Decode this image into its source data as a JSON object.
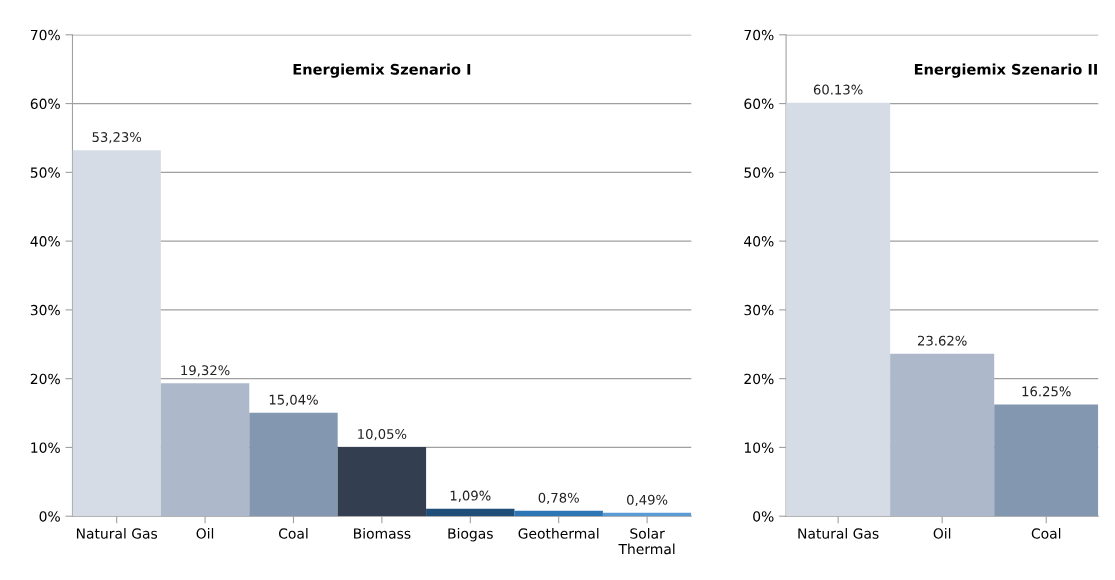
{
  "chart_data": [
    {
      "type": "bar",
      "title": "Energiemix Szenario I",
      "categories": [
        "Natural Gas",
        "Oil",
        "Coal",
        "Biomass",
        "Biogas",
        "Geothermal",
        "Solar\nThermal"
      ],
      "values": [
        53.23,
        19.32,
        15.04,
        10.05,
        1.09,
        0.78,
        0.49
      ],
      "colors": [
        "#d6dce5",
        "#adb9ca",
        "#8497b0",
        "#333f50",
        "#1f4e79",
        "#2e75b6",
        "#5b9bd5"
      ],
      "value_labels": [
        "53,23%",
        "19,32%",
        "15,04%",
        "10,05%",
        "1,09%",
        "0,78%",
        "0,49%"
      ],
      "ylim": [
        0,
        70
      ],
      "yticks": [
        {
          "value": 0,
          "label": "0%"
        },
        {
          "value": 10,
          "label": "10%"
        },
        {
          "value": 20,
          "label": "20%"
        },
        {
          "value": 30,
          "label": "30%"
        },
        {
          "value": 40,
          "label": "40%"
        },
        {
          "value": 50,
          "label": "50%"
        },
        {
          "value": 60,
          "label": "60%"
        },
        {
          "value": 70,
          "label": "70%"
        }
      ],
      "grid": "y",
      "legend": false
    },
    {
      "type": "bar",
      "title": "Energiemix Szenario II",
      "categories": [
        "Natural Gas",
        "Oil",
        "Coal"
      ],
      "values": [
        60.13,
        23.62,
        16.25
      ],
      "colors": [
        "#d6dce5",
        "#adb9ca",
        "#8497b0"
      ],
      "value_labels": [
        "60.13%",
        "23.62%",
        "16.25%"
      ],
      "ylim": [
        0,
        70
      ],
      "yticks": [
        {
          "value": 0,
          "label": "0%"
        },
        {
          "value": 10,
          "label": "10%"
        },
        {
          "value": 20,
          "label": "20%"
        },
        {
          "value": 30,
          "label": "30%"
        },
        {
          "value": 40,
          "label": "40%"
        },
        {
          "value": 50,
          "label": "50%"
        },
        {
          "value": 60,
          "label": "60%"
        },
        {
          "value": 70,
          "label": "70%"
        }
      ],
      "grid": "y",
      "legend": false
    }
  ]
}
